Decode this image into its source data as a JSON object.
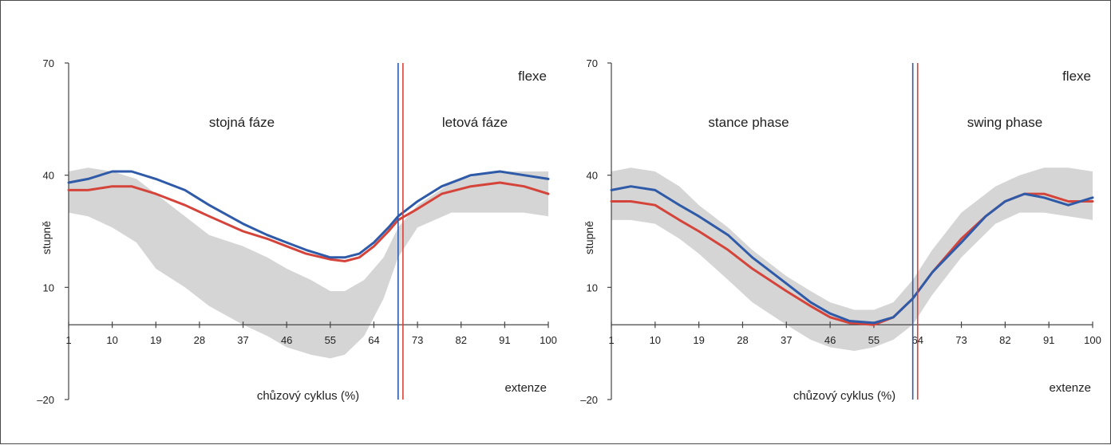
{
  "chart_data": [
    {
      "type": "line",
      "ylabel": "stupně",
      "xlabel": "chůzový cyklus (%)",
      "xticks": [
        1,
        10,
        19,
        28,
        37,
        46,
        55,
        64,
        73,
        82,
        91,
        100
      ],
      "yticks": [
        70,
        40,
        10,
        -20
      ],
      "ytick_labels": [
        "70",
        "40",
        "10",
        "–20"
      ],
      "xlim": [
        1,
        100
      ],
      "ylim": [
        -20,
        70
      ],
      "annotations": {
        "flex": "flexe",
        "ext": "extenze",
        "phase_left": "stojná fáze",
        "phase_right": "letová fáze"
      },
      "phase_lines": [
        {
          "x": 69,
          "color": "#2f5aa8"
        },
        {
          "x": 70,
          "color": "#d4443a"
        }
      ],
      "band": {
        "color": "#d5d5d5",
        "x": [
          1,
          5,
          10,
          15,
          19,
          25,
          30,
          37,
          42,
          46,
          51,
          55,
          58,
          62,
          66,
          69,
          73,
          80,
          88,
          95,
          100
        ],
        "upper": [
          41,
          42,
          41,
          39,
          35,
          29,
          24,
          21,
          18,
          15,
          12,
          9,
          9,
          12,
          18,
          26,
          32,
          38,
          41,
          41,
          41
        ],
        "lower": [
          30,
          29,
          26,
          22,
          15,
          10,
          5,
          0,
          -3,
          -6,
          -8,
          -9,
          -8,
          -3,
          7,
          18,
          26,
          30,
          30,
          30,
          29
        ]
      },
      "series": [
        {
          "color": "#2f5aa8",
          "x": [
            1,
            5,
            10,
            14,
            19,
            25,
            30,
            37,
            42,
            46,
            50,
            55,
            58,
            61,
            64,
            67,
            69,
            73,
            78,
            84,
            90,
            95,
            100
          ],
          "values": [
            38,
            39,
            41,
            41,
            39,
            36,
            32,
            27,
            24,
            22,
            20,
            18,
            18,
            19,
            22,
            26,
            29,
            33,
            37,
            40,
            41,
            40,
            39
          ]
        },
        {
          "color": "#d4443a",
          "x": [
            1,
            5,
            10,
            14,
            19,
            25,
            30,
            37,
            42,
            46,
            50,
            55,
            58,
            61,
            64,
            67,
            69,
            73,
            78,
            84,
            90,
            95,
            100
          ],
          "values": [
            36,
            36,
            37,
            37,
            35,
            32,
            29,
            25,
            23,
            21,
            19,
            17.5,
            17,
            18,
            21,
            25,
            28,
            31,
            35,
            37,
            38,
            37,
            35
          ]
        }
      ]
    },
    {
      "type": "line",
      "ylabel": "stupně",
      "xlabel": "chůzový cyklus (%)",
      "xticks": [
        1,
        10,
        19,
        28,
        37,
        46,
        55,
        64,
        73,
        82,
        91,
        100
      ],
      "yticks": [
        70,
        40,
        10,
        -20
      ],
      "ytick_labels": [
        "70",
        "40",
        "10",
        "–20"
      ],
      "xlim": [
        1,
        100
      ],
      "ylim": [
        -20,
        70
      ],
      "annotations": {
        "flex": "flexe",
        "ext": "extenze",
        "phase_left": "stance phase",
        "phase_right": "swing phase"
      },
      "phase_lines": [
        {
          "x": 63,
          "color": "#2f5aa8"
        },
        {
          "x": 64,
          "color": "#d4443a"
        }
      ],
      "band": {
        "color": "#d5d5d5",
        "x": [
          1,
          5,
          10,
          15,
          19,
          25,
          30,
          37,
          42,
          46,
          51,
          55,
          59,
          63,
          67,
          73,
          80,
          85,
          90,
          95,
          100
        ],
        "upper": [
          41,
          42,
          41,
          37,
          32,
          26,
          20,
          13,
          9,
          6,
          4,
          4,
          6,
          12,
          20,
          30,
          37,
          40,
          42,
          42,
          41
        ],
        "lower": [
          28,
          28,
          27,
          23,
          19,
          12,
          6,
          0,
          -4,
          -6,
          -7,
          -6,
          -4,
          0,
          8,
          18,
          27,
          30,
          30,
          29,
          28
        ]
      },
      "series": [
        {
          "color": "#2f5aa8",
          "x": [
            1,
            5,
            10,
            15,
            19,
            25,
            30,
            37,
            42,
            46,
            50,
            55,
            59,
            63,
            67,
            73,
            78,
            82,
            86,
            90,
            95,
            100
          ],
          "values": [
            36,
            37,
            36,
            32,
            29,
            24,
            18,
            11,
            6,
            3,
            1,
            0.5,
            2,
            7,
            14,
            22,
            29,
            33,
            35,
            34,
            32,
            34
          ]
        },
        {
          "color": "#d4443a",
          "x": [
            1,
            5,
            10,
            15,
            19,
            25,
            30,
            37,
            42,
            46,
            50,
            55,
            59,
            63,
            67,
            73,
            78,
            82,
            86,
            90,
            95,
            100
          ],
          "values": [
            33,
            33,
            32,
            28,
            25,
            20,
            15,
            9,
            5,
            2,
            0.5,
            0,
            2,
            7,
            14,
            23,
            29,
            33,
            35,
            35,
            33,
            33
          ]
        }
      ]
    }
  ]
}
